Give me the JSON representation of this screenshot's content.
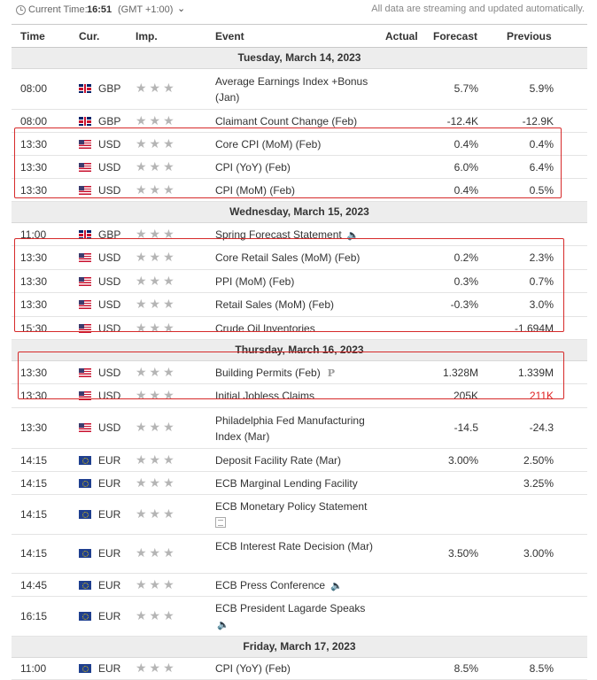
{
  "topbar": {
    "current_time_label": "Current Time:",
    "current_time": "16:51",
    "gmt": "(GMT +1:00)",
    "note": "All data are streaming and updated automatically."
  },
  "columns": {
    "time": "Time",
    "cur": "Cur.",
    "imp": "Imp.",
    "event": "Event",
    "actual": "Actual",
    "forecast": "Forecast",
    "previous": "Previous"
  },
  "days": [
    {
      "date": "Tuesday, March 14, 2023"
    },
    {
      "date": "Wednesday, March 15, 2023"
    },
    {
      "date": "Thursday, March 16, 2023"
    },
    {
      "date": "Friday, March 17, 2023"
    }
  ],
  "events": [
    {
      "time": "08:00",
      "cur": "GBP",
      "event": "Average Earnings Index +Bonus (Jan)",
      "forecast": "5.7%",
      "previous": "5.9%"
    },
    {
      "time": "08:00",
      "cur": "GBP",
      "event": "Claimant Count Change (Feb)",
      "forecast": "-12.4K",
      "previous": "-12.9K"
    },
    {
      "time": "13:30",
      "cur": "USD",
      "event": "Core CPI (MoM) (Feb)",
      "forecast": "0.4%",
      "previous": "0.4%"
    },
    {
      "time": "13:30",
      "cur": "USD",
      "event": "CPI (YoY) (Feb)",
      "forecast": "6.0%",
      "previous": "6.4%"
    },
    {
      "time": "13:30",
      "cur": "USD",
      "event": "CPI (MoM) (Feb)",
      "forecast": "0.4%",
      "previous": "0.5%"
    },
    {
      "time": "11:00",
      "cur": "GBP",
      "event": "Spring Forecast Statement",
      "forecast": "",
      "previous": ""
    },
    {
      "time": "13:30",
      "cur": "USD",
      "event": "Core Retail Sales (MoM) (Feb)",
      "forecast": "0.2%",
      "previous": "2.3%"
    },
    {
      "time": "13:30",
      "cur": "USD",
      "event": "PPI (MoM) (Feb)",
      "forecast": "0.3%",
      "previous": "0.7%"
    },
    {
      "time": "13:30",
      "cur": "USD",
      "event": "Retail Sales (MoM) (Feb)",
      "forecast": "-0.3%",
      "previous": "3.0%"
    },
    {
      "time": "15:30",
      "cur": "USD",
      "event": "Crude Oil Inventories",
      "forecast": "",
      "previous": "-1.694M"
    },
    {
      "time": "13:30",
      "cur": "USD",
      "event": "Building Permits (Feb)",
      "forecast": "1.328M",
      "previous": "1.339M"
    },
    {
      "time": "13:30",
      "cur": "USD",
      "event": "Initial Jobless Claims",
      "forecast": "205K",
      "previous": "211K"
    },
    {
      "time": "13:30",
      "cur": "USD",
      "event": "Philadelphia Fed Manufacturing Index (Mar)",
      "forecast": "-14.5",
      "previous": "-24.3"
    },
    {
      "time": "14:15",
      "cur": "EUR",
      "event": "Deposit Facility Rate (Mar)",
      "forecast": "3.00%",
      "previous": "2.50%"
    },
    {
      "time": "14:15",
      "cur": "EUR",
      "event": "ECB Marginal Lending Facility",
      "forecast": "",
      "previous": "3.25%"
    },
    {
      "time": "14:15",
      "cur": "EUR",
      "event": "ECB Monetary Policy Statement",
      "forecast": "",
      "previous": ""
    },
    {
      "time": "14:15",
      "cur": "EUR",
      "event": "ECB Interest Rate Decision (Mar)",
      "forecast": "3.50%",
      "previous": "3.00%"
    },
    {
      "time": "14:45",
      "cur": "EUR",
      "event": "ECB Press Conference",
      "forecast": "",
      "previous": ""
    },
    {
      "time": "16:15",
      "cur": "EUR",
      "event": "ECB President Lagarde Speaks",
      "forecast": "",
      "previous": ""
    },
    {
      "time": "11:00",
      "cur": "EUR",
      "event": "CPI (YoY) (Feb)",
      "forecast": "8.5%",
      "previous": "8.5%"
    }
  ],
  "importance_stars": "★★★",
  "colors": {
    "highlight_box": "#d62a2a",
    "negative_previous": "#e02020",
    "date_row_bg": "#ededed"
  },
  "icons": [
    "clock-icon",
    "chevron-down-icon",
    "flag-gb-icon",
    "flag-us-icon",
    "flag-eu-icon",
    "bull-star-icon",
    "speaker-icon",
    "preliminary-p-icon",
    "document-icon"
  ]
}
